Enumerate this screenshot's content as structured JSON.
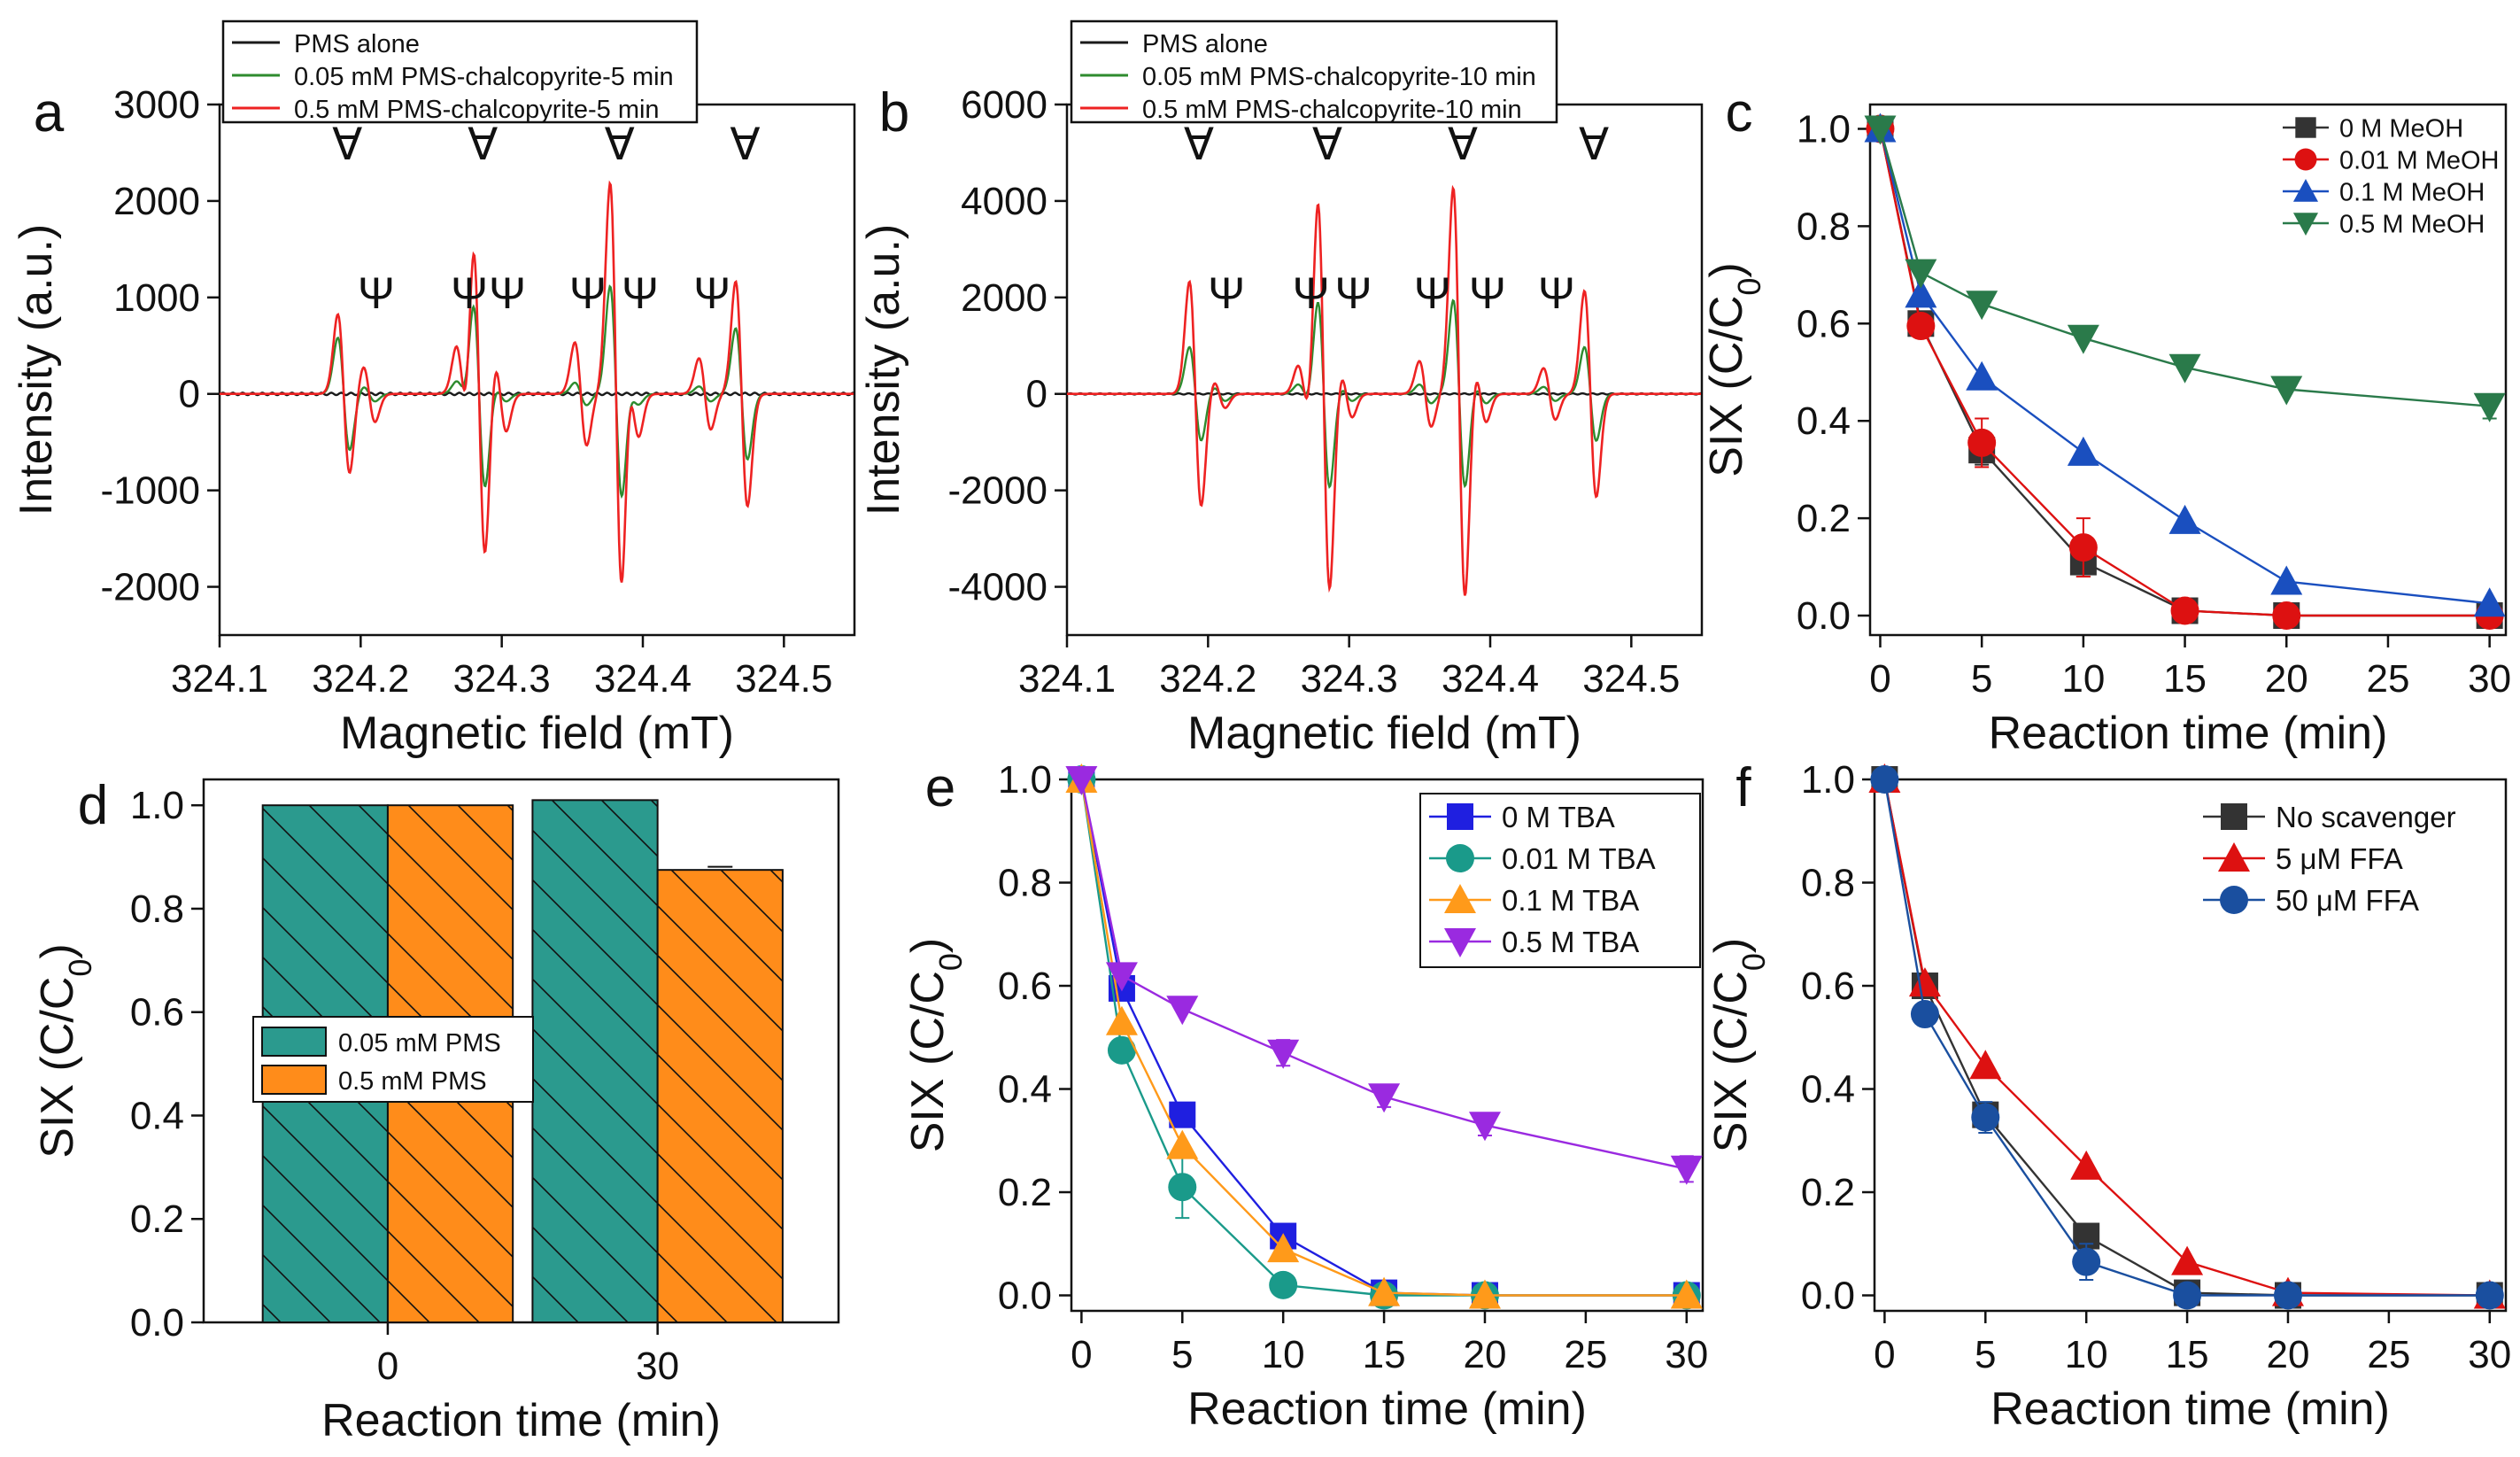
{
  "colors": {
    "black": "#1a1a1a",
    "green": "#2e8b2e",
    "red": "#ee2222",
    "c_black": "#333333",
    "c_red": "#dd1111",
    "c_blue": "#1a4fbf",
    "c_green": "#2a7a4a",
    "e_blue": "#1f1fe0",
    "e_teal": "#1a9a8a",
    "e_orange": "#ff9a1a",
    "e_purple": "#9a2ae0",
    "f_black": "#333333",
    "f_red": "#dd1111",
    "f_blue": "#1a4f9f",
    "bar_teal": "#2b9a8e",
    "bar_orange": "#ff8c1a"
  },
  "panels": {
    "a": "a",
    "b": "b",
    "c": "c",
    "d": "d",
    "e": "e",
    "f": "f"
  },
  "epr_symbols": {
    "alpha": "∀",
    "psi": "Ψ"
  },
  "chart_data": [
    {
      "id": "a",
      "type": "line",
      "xlabel": "Magnetic field (mT)",
      "ylabel": "Intensity (a.u.)",
      "xlim": [
        324.1,
        324.55
      ],
      "ylim": [
        -2500,
        3000
      ],
      "xticks": [
        "324.1",
        "324.2",
        "324.3",
        "324.4",
        "324.5"
      ],
      "yticks": [
        "3000",
        "2000",
        "1000",
        "0",
        "-1000",
        "-2000"
      ],
      "xtick_values": [
        324.1,
        324.2,
        324.3,
        324.4,
        324.5
      ],
      "ytick_values": [
        3000,
        2000,
        1000,
        0,
        -1000,
        -2000
      ],
      "dmpo_oh_peaks_mT": [
        324.188,
        324.284,
        324.381,
        324.47
      ],
      "dmpo_so4_peaks_mT": [
        324.206,
        324.272,
        324.299,
        324.356,
        324.393,
        324.444
      ],
      "legend": [
        "PMS alone",
        "0.05 mM PMS-chalcopyrite-5 min",
        "0.5 mM PMS-chalcopyrite-5 min"
      ],
      "series": [
        {
          "name": "PMS alone",
          "amp_oh": [
            0,
            0,
            0,
            0
          ],
          "amp_so4": [
            0,
            0,
            0,
            0,
            0,
            0
          ]
        },
        {
          "name": "0.05 mM PMS-chalcopyrite-5 min",
          "amp_oh": [
            600,
            1000,
            1150,
            700
          ],
          "amp_so4": [
            80,
            130,
            80,
            120,
            110,
            80
          ]
        },
        {
          "name": "0.5 mM PMS-chalcopyrite-5 min",
          "amp_oh": [
            850,
            1750,
            2250,
            1200
          ],
          "amp_so4": [
            300,
            500,
            400,
            550,
            450,
            380
          ]
        }
      ]
    },
    {
      "id": "b",
      "type": "line",
      "xlabel": "Magnetic field (mT)",
      "ylabel": "Intensity (a.u.)",
      "xlim": [
        324.1,
        324.55
      ],
      "ylim": [
        -5000,
        6000
      ],
      "xticks": [
        "324.1",
        "324.2",
        "324.3",
        "324.4",
        "324.5"
      ],
      "yticks": [
        "6000",
        "4000",
        "2000",
        "0",
        "-2000",
        "-4000"
      ],
      "xtick_values": [
        324.1,
        324.2,
        324.3,
        324.4,
        324.5
      ],
      "ytick_values": [
        6000,
        4000,
        2000,
        0,
        -2000,
        -4000
      ],
      "dmpo_oh_peaks_mT": [
        324.191,
        324.282,
        324.378,
        324.471
      ],
      "dmpo_so4_peaks_mT": [
        324.208,
        324.268,
        324.298,
        324.354,
        324.393,
        324.442
      ],
      "legend": [
        "PMS alone",
        "0.05 mM PMS-chalcopyrite-10 min",
        "0.5 mM PMS-chalcopyrite-10 min"
      ],
      "series": [
        {
          "name": "PMS alone",
          "amp_oh": [
            0,
            0,
            0,
            0
          ],
          "amp_so4": [
            0,
            0,
            0,
            0,
            0,
            0
          ]
        },
        {
          "name": "0.05 mM PMS-chalcopyrite-10 min",
          "amp_oh": [
            1000,
            2000,
            2000,
            1000
          ],
          "amp_so4": [
            150,
            200,
            150,
            200,
            200,
            150
          ]
        },
        {
          "name": "0.5 mM PMS-chalcopyrite-10 min",
          "amp_oh": [
            2400,
            4200,
            4400,
            2200
          ],
          "amp_so4": [
            300,
            600,
            500,
            700,
            600,
            550
          ]
        }
      ]
    },
    {
      "id": "c",
      "type": "line",
      "xlabel": "Reaction time (min)",
      "ylabel": "SIX (C/C0)",
      "xlim": [
        -0.5,
        30.8
      ],
      "ylim": [
        -0.04,
        1.05
      ],
      "xticks": [
        "0",
        "5",
        "10",
        "15",
        "20",
        "25",
        "30"
      ],
      "xtick_values": [
        0,
        5,
        10,
        15,
        20,
        25,
        30
      ],
      "yticks": [
        "0.0",
        "0.2",
        "0.4",
        "0.6",
        "0.8",
        "1.0"
      ],
      "ytick_values": [
        0,
        0.2,
        0.4,
        0.6,
        0.8,
        1.0
      ],
      "x": [
        0,
        2,
        5,
        10,
        15,
        20,
        30
      ],
      "series": [
        {
          "name": "0 M MeOH",
          "marker": "square",
          "color_key": "c_black",
          "values": [
            1.0,
            0.6,
            0.34,
            0.11,
            0.01,
            0.0,
            0.0
          ],
          "err": [
            0,
            0,
            0.03,
            0.03,
            0,
            0,
            0
          ]
        },
        {
          "name": "0.01 M MeOH",
          "marker": "circle",
          "color_key": "c_red",
          "values": [
            1.0,
            0.595,
            0.355,
            0.14,
            0.01,
            0.0,
            0.0
          ],
          "err": [
            0,
            0,
            0.05,
            0.06,
            0,
            0,
            0
          ]
        },
        {
          "name": "0.1 M MeOH",
          "marker": "triangle",
          "color_key": "c_blue",
          "values": [
            1.0,
            0.66,
            0.49,
            0.335,
            0.195,
            0.07,
            0.025
          ],
          "err": [
            0,
            0,
            0,
            0,
            0,
            0,
            0
          ]
        },
        {
          "name": "0.5 M MeOH",
          "marker": "triangle-down",
          "color_key": "c_green",
          "values": [
            1.0,
            0.705,
            0.64,
            0.57,
            0.51,
            0.465,
            0.43
          ],
          "err": [
            0,
            0,
            0,
            0,
            0,
            0,
            0.025
          ]
        }
      ]
    },
    {
      "id": "d",
      "type": "bar",
      "xlabel": "Reaction time (min)",
      "ylabel": "SIX (C/C0)",
      "ylim": [
        0,
        1.05
      ],
      "yticks": [
        "0.0",
        "0.2",
        "0.4",
        "0.6",
        "0.8",
        "1.0"
      ],
      "ytick_values": [
        0,
        0.2,
        0.4,
        0.6,
        0.8,
        1.0
      ],
      "categories": [
        "0",
        "30"
      ],
      "series": [
        {
          "name": "0.05 mM PMS",
          "color_key": "bar_teal",
          "values": [
            1.0,
            1.01
          ],
          "err": [
            0,
            0
          ]
        },
        {
          "name": "0.5 mM PMS",
          "color_key": "bar_orange",
          "values": [
            1.0,
            0.875
          ],
          "err": [
            0,
            0.006
          ]
        }
      ]
    },
    {
      "id": "e",
      "type": "line",
      "xlabel": "Reaction time (min)",
      "ylabel": "SIX (C/C0)",
      "xlim": [
        -0.5,
        30.8
      ],
      "ylim": [
        -0.03,
        1.0
      ],
      "xticks": [
        "0",
        "5",
        "10",
        "15",
        "20",
        "25",
        "30"
      ],
      "xtick_values": [
        0,
        5,
        10,
        15,
        20,
        25,
        30
      ],
      "yticks": [
        "0.0",
        "0.2",
        "0.4",
        "0.6",
        "0.8",
        "1.0"
      ],
      "ytick_values": [
        0,
        0.2,
        0.4,
        0.6,
        0.8,
        1.0
      ],
      "x": [
        0,
        2,
        5,
        10,
        15,
        20,
        30
      ],
      "series": [
        {
          "name": "0 M TBA",
          "marker": "square",
          "color_key": "e_blue",
          "values": [
            1.0,
            0.595,
            0.35,
            0.115,
            0.005,
            0.0,
            0.0
          ],
          "err": [
            0,
            0,
            0,
            0,
            0,
            0,
            0
          ]
        },
        {
          "name": "0.01 M TBA",
          "marker": "circle",
          "color_key": "e_teal",
          "values": [
            1.0,
            0.475,
            0.21,
            0.02,
            0.0,
            0.0,
            0.0
          ],
          "err": [
            0,
            0,
            0.06,
            0,
            0,
            0,
            0
          ]
        },
        {
          "name": "0.1 M TBA",
          "marker": "triangle",
          "color_key": "e_orange",
          "values": [
            1.0,
            0.53,
            0.29,
            0.09,
            0.005,
            0.0,
            0.0
          ],
          "err": [
            0,
            0,
            0,
            0,
            0,
            0,
            0
          ]
        },
        {
          "name": "0.5 M TBA",
          "marker": "triangle-down",
          "color_key": "e_purple",
          "values": [
            1.0,
            0.62,
            0.555,
            0.47,
            0.385,
            0.33,
            0.245
          ],
          "err": [
            0,
            0,
            0,
            0.025,
            0.02,
            0.02,
            0.025
          ]
        }
      ]
    },
    {
      "id": "f",
      "type": "line",
      "xlabel": "Reaction time (min)",
      "ylabel": "SIX (C/C0)",
      "xlim": [
        -0.5,
        30.8
      ],
      "ylim": [
        -0.03,
        1.0
      ],
      "xticks": [
        "0",
        "5",
        "10",
        "15",
        "20",
        "25",
        "30"
      ],
      "xtick_values": [
        0,
        5,
        10,
        15,
        20,
        25,
        30
      ],
      "yticks": [
        "0.0",
        "0.2",
        "0.4",
        "0.6",
        "0.8",
        "1.0"
      ],
      "ytick_values": [
        0,
        0.2,
        0.4,
        0.6,
        0.8,
        1.0
      ],
      "x": [
        0,
        2,
        5,
        10,
        15,
        20,
        30
      ],
      "series": [
        {
          "name": "No scavenger",
          "marker": "square",
          "color_key": "f_black",
          "values": [
            1.0,
            0.6,
            0.35,
            0.115,
            0.005,
            0.0,
            0.0
          ],
          "err": [
            0,
            0,
            0,
            0,
            0,
            0,
            0
          ]
        },
        {
          "name": "5 μM FFA",
          "marker": "triangle",
          "color_key": "f_red",
          "values": [
            1.0,
            0.605,
            0.445,
            0.25,
            0.065,
            0.005,
            0.0
          ],
          "err": [
            0,
            0,
            0,
            0,
            0,
            0,
            0
          ]
        },
        {
          "name": "50 μM FFA",
          "marker": "circle",
          "color_key": "f_blue",
          "values": [
            1.0,
            0.545,
            0.345,
            0.065,
            0.0,
            0.0,
            0.0
          ],
          "err": [
            0,
            0,
            0.03,
            0.035,
            0,
            0,
            0
          ]
        }
      ]
    }
  ]
}
